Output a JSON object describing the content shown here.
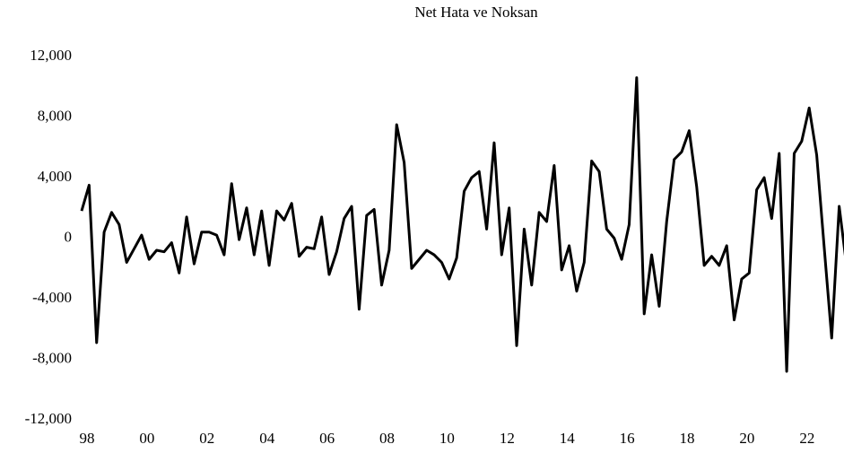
{
  "chart_data": {
    "type": "line",
    "title": "Net Hata ve Noksan",
    "x": [
      1998,
      1998.25,
      1998.5,
      1998.75,
      1999,
      1999.25,
      1999.5,
      1999.75,
      2000,
      2000.25,
      2000.5,
      2000.75,
      2001,
      2001.25,
      2001.5,
      2001.75,
      2002,
      2002.25,
      2002.5,
      2002.75,
      2003,
      2003.25,
      2003.5,
      2003.75,
      2004,
      2004.25,
      2004.5,
      2004.75,
      2005,
      2005.25,
      2005.5,
      2005.75,
      2006,
      2006.25,
      2006.5,
      2006.75,
      2007,
      2007.25,
      2007.5,
      2007.75,
      2008,
      2008.25,
      2008.5,
      2008.75,
      2009,
      2009.25,
      2009.5,
      2009.75,
      2010,
      2010.25,
      2010.5,
      2010.75,
      2011,
      2011.25,
      2011.5,
      2011.75,
      2012,
      2012.25,
      2012.5,
      2012.75,
      2013,
      2013.25,
      2013.5,
      2013.75,
      2014,
      2014.25,
      2014.5,
      2014.75,
      2015,
      2015.25,
      2015.5,
      2015.75,
      2016,
      2016.25,
      2016.5,
      2016.75,
      2017,
      2017.25,
      2017.5,
      2017.75,
      2018,
      2018.25,
      2018.5,
      2018.75,
      2019,
      2019.25,
      2019.5,
      2019.75,
      2020,
      2020.25,
      2020.5,
      2020.75,
      2021,
      2021.25,
      2021.5,
      2021.75,
      2022,
      2022.25,
      2022.5,
      2022.75,
      2023,
      2023.25,
      2023.5
    ],
    "series": [
      {
        "color": "#000000",
        "values": [
          1800,
          3500,
          -6900,
          400,
          1700,
          900,
          -1600,
          -700,
          200,
          -1400,
          -800,
          -900,
          -300,
          -2300,
          1400,
          -1700,
          400,
          400,
          200,
          -1100,
          3600,
          -100,
          2000,
          -1100,
          1800,
          -1800,
          1800,
          1200,
          2300,
          -1200,
          -600,
          -700,
          1400,
          -2400,
          -900,
          1300,
          2100,
          -4700,
          1500,
          1900,
          -3100,
          -800,
          7500,
          5000,
          -2000,
          -1400,
          -800,
          -1100,
          -1600,
          -2700,
          -1300,
          3100,
          4000,
          4400,
          600,
          6300,
          -1100,
          2000,
          -7100,
          600,
          -3100,
          1700,
          1100,
          4800,
          -2100,
          -500,
          -3500,
          -1600,
          5100,
          4400,
          600,
          0,
          -1400,
          900,
          10600,
          -5000,
          -1100,
          -4500,
          1100,
          5200,
          5700,
          7100,
          3400,
          -1800,
          -1200,
          -1800,
          -500,
          -5400,
          -2700,
          -2300,
          3200,
          4000,
          1300,
          5600,
          -8800,
          5600,
          6400,
          8600,
          5500,
          -600,
          -6600,
          2100,
          -1900
        ]
      }
    ],
    "xlim": [
      1998,
      2023.5
    ],
    "xticks": [
      {
        "value": 1998,
        "label": "98"
      },
      {
        "value": 2000,
        "label": "00"
      },
      {
        "value": 2002,
        "label": "02"
      },
      {
        "value": 2004,
        "label": "04"
      },
      {
        "value": 2006,
        "label": "06"
      },
      {
        "value": 2008,
        "label": "08"
      },
      {
        "value": 2010,
        "label": "10"
      },
      {
        "value": 2012,
        "label": "12"
      },
      {
        "value": 2014,
        "label": "14"
      },
      {
        "value": 2016,
        "label": "16"
      },
      {
        "value": 2018,
        "label": "18"
      },
      {
        "value": 2020,
        "label": "20"
      },
      {
        "value": 2022,
        "label": "22"
      }
    ],
    "ylim": [
      -12000,
      12000
    ],
    "yticks": [
      {
        "value": -12000,
        "label": "-12,000"
      },
      {
        "value": -8000,
        "label": "-8,000"
      },
      {
        "value": -4000,
        "label": "-4,000"
      },
      0,
      {
        "value": 4000,
        "label": "4,000"
      },
      {
        "value": 8000,
        "label": "8,000"
      },
      {
        "value": 12000,
        "label": "12,000"
      }
    ]
  }
}
